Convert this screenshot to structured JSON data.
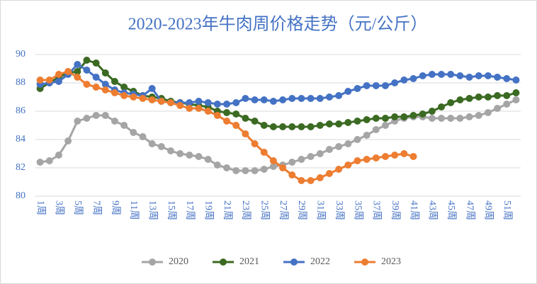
{
  "chart_data": {
    "type": "line",
    "title": "2020-2023年牛肉周价格走势（元/公斤）",
    "categories": [
      "1周",
      null,
      "3周",
      null,
      "5周",
      null,
      "7周",
      null,
      "9周",
      null,
      "11周",
      null,
      "13周",
      null,
      "15周",
      null,
      "17周",
      null,
      "19周",
      null,
      "21周",
      null,
      "23周",
      null,
      "25周",
      null,
      "27周",
      null,
      "29周",
      null,
      "31周",
      null,
      "33周",
      null,
      "35周",
      null,
      "37周",
      null,
      "39周",
      null,
      "41周",
      null,
      "43周",
      null,
      "45周",
      null,
      "47周",
      null,
      "49周",
      null,
      "51周",
      null
    ],
    "series": [
      {
        "name": "2020",
        "color": "#a5a5a5",
        "values": [
          82.4,
          82.5,
          82.9,
          83.9,
          85.3,
          85.5,
          85.7,
          85.7,
          85.3,
          85.0,
          84.5,
          84.2,
          83.7,
          83.5,
          83.2,
          83.0,
          82.9,
          82.8,
          82.6,
          82.2,
          82.0,
          81.8,
          81.8,
          81.8,
          81.9,
          82.1,
          82.2,
          82.4,
          82.6,
          82.8,
          83.0,
          83.3,
          83.5,
          83.7,
          84.0,
          84.3,
          84.7,
          85.0,
          85.3,
          85.5,
          85.6,
          85.6,
          85.5,
          85.5,
          85.5,
          85.5,
          85.6,
          85.7,
          85.9,
          86.2,
          86.5,
          86.8
        ]
      },
      {
        "name": "2021",
        "color": "#3b6a22",
        "values": [
          87.6,
          88.0,
          88.4,
          88.7,
          88.8,
          89.6,
          89.4,
          88.7,
          88.1,
          87.7,
          87.4,
          87.1,
          87.0,
          86.9,
          86.7,
          86.6,
          86.5,
          86.4,
          86.3,
          86.0,
          85.9,
          85.8,
          85.5,
          85.3,
          85.0,
          84.9,
          84.9,
          84.9,
          84.9,
          84.9,
          85.0,
          85.1,
          85.1,
          85.2,
          85.3,
          85.4,
          85.5,
          85.5,
          85.6,
          85.6,
          85.7,
          85.8,
          86.0,
          86.3,
          86.6,
          86.8,
          86.9,
          87.0,
          87.0,
          87.1,
          87.1,
          87.3
        ]
      },
      {
        "name": "2022",
        "color": "#4472c4",
        "values": [
          87.9,
          88.0,
          88.1,
          88.6,
          89.3,
          88.9,
          88.4,
          87.9,
          87.5,
          87.3,
          87.2,
          87.1,
          87.6,
          86.7,
          86.6,
          86.6,
          86.6,
          86.7,
          86.6,
          86.5,
          86.5,
          86.6,
          86.9,
          86.8,
          86.8,
          86.7,
          86.8,
          86.9,
          86.9,
          86.9,
          86.9,
          87.0,
          87.1,
          87.4,
          87.6,
          87.8,
          87.8,
          87.8,
          88.0,
          88.2,
          88.3,
          88.5,
          88.6,
          88.6,
          88.6,
          88.5,
          88.4,
          88.5,
          88.5,
          88.4,
          88.3,
          88.2
        ]
      },
      {
        "name": "2023",
        "color": "#ed7d31",
        "values": [
          88.2,
          88.2,
          88.6,
          88.8,
          88.4,
          87.9,
          87.7,
          87.5,
          87.3,
          87.1,
          87.0,
          86.9,
          86.8,
          86.7,
          86.6,
          86.4,
          86.2,
          86.2,
          86.0,
          85.7,
          85.3,
          85.0,
          84.4,
          83.7,
          83.1,
          82.5,
          82.0,
          81.5,
          81.1,
          81.1,
          81.3,
          81.6,
          81.9,
          82.2,
          82.5,
          82.6,
          82.7,
          82.8,
          82.9,
          83.0,
          82.8,
          null,
          null,
          null,
          null,
          null,
          null,
          null,
          null,
          null,
          null,
          null
        ]
      }
    ],
    "ylim": [
      80,
      90
    ],
    "yticks": [
      80,
      82,
      84,
      86,
      88,
      90
    ],
    "grid": true,
    "legend": "bottom"
  }
}
